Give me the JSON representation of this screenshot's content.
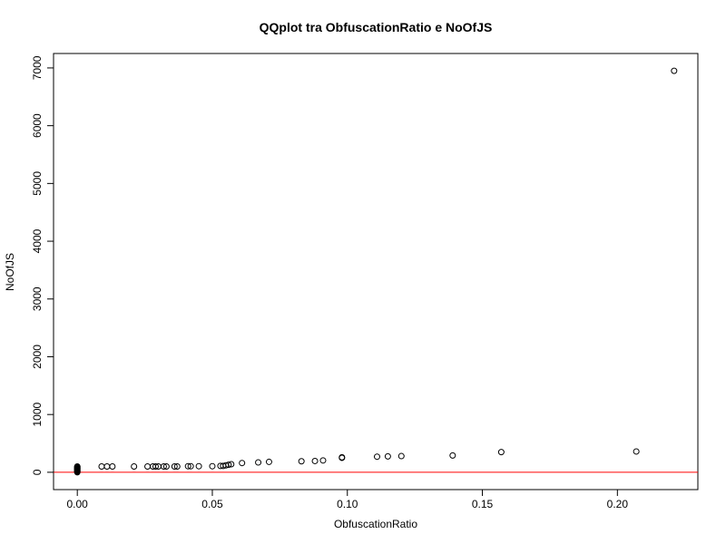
{
  "chart_data": {
    "type": "scatter",
    "title": "QQplot tra ObfuscationRatio e NoOfJS",
    "xlabel": "ObfuscationRatio",
    "ylabel": "NoOfJS",
    "xlim": [
      -0.0088,
      0.2298
    ],
    "ylim": [
      -300,
      7250
    ],
    "x_ticks": [
      0.0,
      0.05,
      0.1,
      0.15,
      0.2
    ],
    "x_tick_labels": [
      "0.00",
      "0.05",
      "0.10",
      "0.15",
      "0.20"
    ],
    "y_ticks": [
      0,
      1000,
      2000,
      3000,
      4000,
      5000,
      6000,
      7000
    ],
    "y_tick_labels": [
      "0",
      "1000",
      "2000",
      "3000",
      "4000",
      "5000",
      "6000",
      "7000"
    ],
    "grid": false,
    "reference_line": {
      "y": 0,
      "color": "#ff0000"
    },
    "point_style": {
      "shape": "open-circle",
      "color": "#000000"
    },
    "points": [
      [
        0.0,
        0
      ],
      [
        0.0,
        10
      ],
      [
        0.0,
        20
      ],
      [
        0.0,
        30
      ],
      [
        0.0,
        40
      ],
      [
        0.0,
        50
      ],
      [
        0.0,
        60
      ],
      [
        0.0,
        70
      ],
      [
        0.0,
        80
      ],
      [
        0.0,
        90
      ],
      [
        0.0,
        100
      ],
      [
        0.009,
        100
      ],
      [
        0.011,
        100
      ],
      [
        0.013,
        100
      ],
      [
        0.021,
        100
      ],
      [
        0.026,
        100
      ],
      [
        0.028,
        100
      ],
      [
        0.029,
        100
      ],
      [
        0.03,
        100
      ],
      [
        0.032,
        100
      ],
      [
        0.033,
        100
      ],
      [
        0.036,
        100
      ],
      [
        0.037,
        100
      ],
      [
        0.041,
        105
      ],
      [
        0.042,
        105
      ],
      [
        0.045,
        105
      ],
      [
        0.05,
        105
      ],
      [
        0.053,
        110
      ],
      [
        0.054,
        110
      ],
      [
        0.055,
        120
      ],
      [
        0.056,
        130
      ],
      [
        0.057,
        140
      ],
      [
        0.061,
        160
      ],
      [
        0.067,
        170
      ],
      [
        0.071,
        180
      ],
      [
        0.083,
        190
      ],
      [
        0.088,
        195
      ],
      [
        0.091,
        205
      ],
      [
        0.098,
        250
      ],
      [
        0.098,
        260
      ],
      [
        0.111,
        270
      ],
      [
        0.115,
        275
      ],
      [
        0.12,
        280
      ],
      [
        0.139,
        290
      ],
      [
        0.157,
        350
      ],
      [
        0.207,
        360
      ],
      [
        0.221,
        6950
      ]
    ]
  }
}
